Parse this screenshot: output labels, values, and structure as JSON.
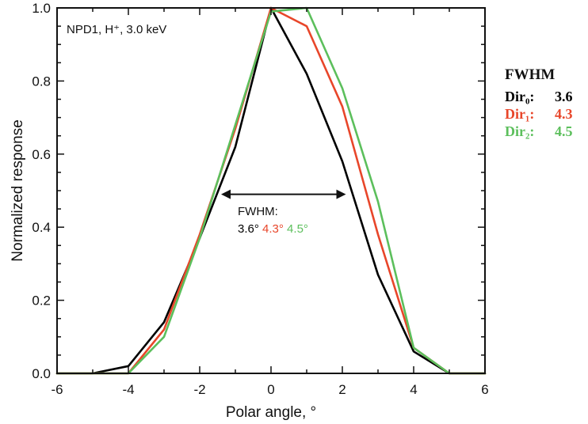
{
  "chart_data": {
    "type": "line",
    "title": "",
    "xlabel": "Polar angle, °",
    "ylabel": "Normalized response",
    "xlim": [
      -6,
      6
    ],
    "ylim": [
      0,
      1.0
    ],
    "xticks": [
      "-6",
      "-4",
      "-2",
      "0",
      "2",
      "4",
      "6"
    ],
    "yticks": [
      "0.0",
      "0.2",
      "0.4",
      "0.6",
      "0.8",
      "1.0"
    ],
    "annotation": {
      "condition": "NPD1, H⁺, 3.0 keV",
      "fwhm_label": "FWHM:",
      "fwhm_values": [
        "3.6°",
        "4.3°",
        "4.5°"
      ],
      "arrow_x": [
        -1.4,
        2.1
      ],
      "arrow_y": 0.49
    },
    "legend": {
      "title": "FWHM",
      "position": "right",
      "entries": [
        {
          "name": "Dir₀:",
          "value": "3.6"
        },
        {
          "name": "Dir₁:",
          "value": "4.3"
        },
        {
          "name": "Dir₂:",
          "value": "4.5"
        }
      ]
    },
    "series": [
      {
        "name": "Dir₀",
        "color": "#000000",
        "x": [
          -6,
          -5,
          -4,
          -3,
          -2,
          -1,
          0,
          1,
          2,
          3,
          4,
          5,
          6
        ],
        "y": [
          0.0,
          0.0,
          0.02,
          0.14,
          0.37,
          0.62,
          1.0,
          0.82,
          0.58,
          0.27,
          0.06,
          0.0,
          0.0
        ]
      },
      {
        "name": "Dir₁",
        "color": "#e8462a",
        "x": [
          -6,
          -5,
          -4,
          -3,
          -2,
          -1,
          0,
          1,
          2,
          3,
          4,
          5,
          6
        ],
        "y": [
          0.0,
          0.0,
          0.0,
          0.12,
          0.38,
          0.67,
          1.0,
          0.95,
          0.73,
          0.38,
          0.07,
          0.0,
          0.0
        ]
      },
      {
        "name": "Dir₂",
        "color": "#5cbf5c",
        "x": [
          -6,
          -5,
          -4,
          -3,
          -2,
          -1,
          0,
          1,
          2,
          3,
          4,
          5,
          6
        ],
        "y": [
          0.0,
          0.0,
          0.0,
          0.1,
          0.37,
          0.68,
          0.99,
          1.0,
          0.78,
          0.47,
          0.07,
          0.0,
          0.0
        ]
      }
    ]
  }
}
